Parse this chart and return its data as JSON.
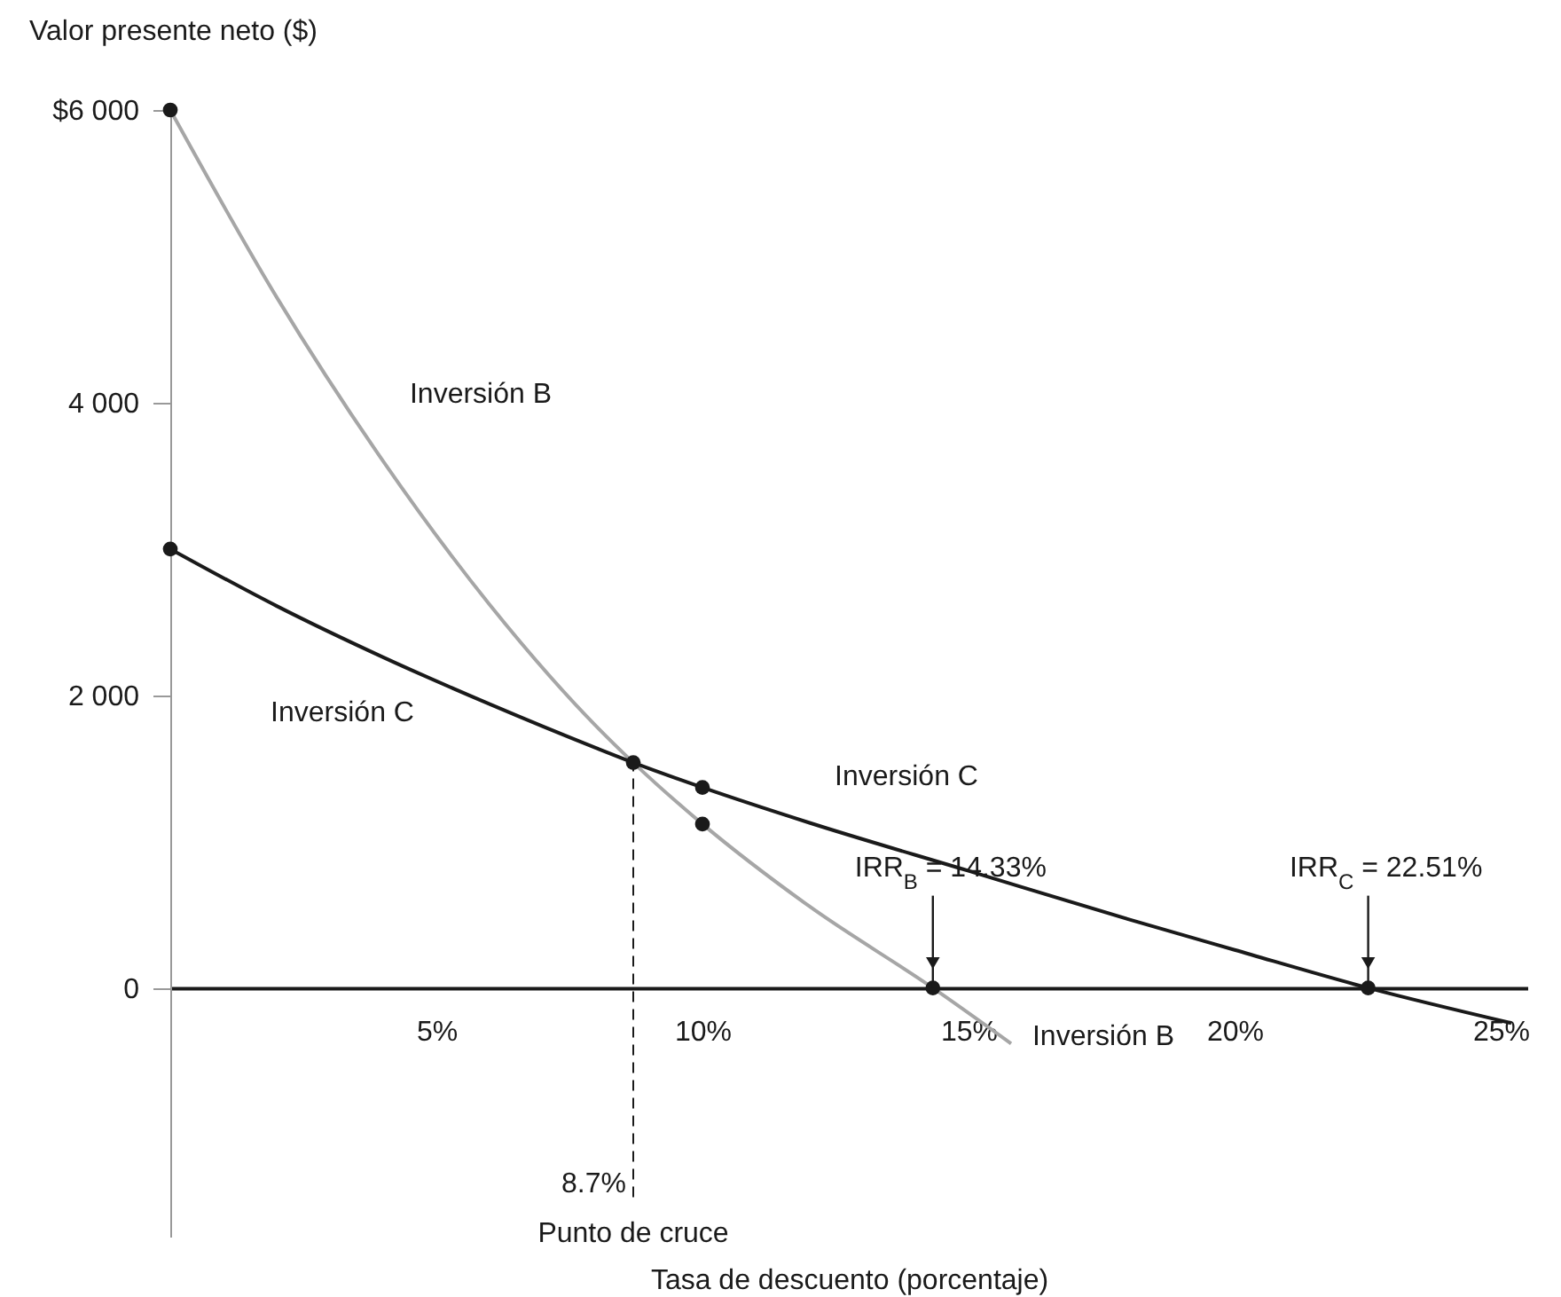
{
  "chart_data": {
    "type": "line",
    "xlabel": "Tasa de descuento (porcentaje)",
    "ylabel": "Valor presente neto ($)",
    "xlim": [
      0,
      25.5
    ],
    "ylim": [
      -1700,
      6000
    ],
    "xticks": [
      {
        "value": 5,
        "label": "5%"
      },
      {
        "value": 10,
        "label": "10%"
      },
      {
        "value": 15,
        "label": "15%"
      },
      {
        "value": 20,
        "label": "20%"
      },
      {
        "value": 25,
        "label": "25%"
      }
    ],
    "yticks": [
      0,
      {
        "value": 2000,
        "label": "2 000"
      },
      {
        "value": 4000,
        "label": "4 000"
      },
      {
        "value": 6000,
        "label": "$6 000"
      }
    ],
    "grid": false,
    "series": [
      {
        "name": "Inversión B",
        "color": "#a6a6a6",
        "x": [
          0,
          2,
          4,
          6,
          8,
          8.7,
          10,
          12,
          14.33,
          15.8
        ],
        "values": [
          6000,
          4720,
          3600,
          2620,
          1790,
          1540,
          1120,
          560,
          0,
          -380
        ]
      },
      {
        "name": "Inversión C",
        "color": "#1a1a1a",
        "x": [
          0,
          2,
          4,
          6,
          8,
          8.7,
          10,
          12,
          15,
          18,
          20,
          22.51,
          25.2
        ],
        "values": [
          3000,
          2610,
          2260,
          1940,
          1640,
          1540,
          1370,
          1130,
          800,
          470,
          260,
          0,
          -240
        ]
      },
      {
        "type": "scatter",
        "color": "#1a1a1a",
        "marker": "circle",
        "x": [
          0,
          0,
          8.7,
          10,
          10,
          14.33,
          22.51
        ],
        "values": [
          6000,
          3000,
          1540,
          1370,
          1120,
          0,
          0
        ]
      }
    ],
    "ref_lines": [
      {
        "axis": "x",
        "value": 8.7,
        "label": "8.7%",
        "line_style": "dashed",
        "color": "#1a1a1a"
      }
    ],
    "annotations": [
      {
        "text": "IRR$_{C}$ = 22.51%",
        "x": 22.51,
        "y": 0
      },
      {
        "text": "IRR$_{B}$ = 14.33%",
        "x": 14.33,
        "y": 0
      },
      "Punto de cruce"
    ]
  }
}
